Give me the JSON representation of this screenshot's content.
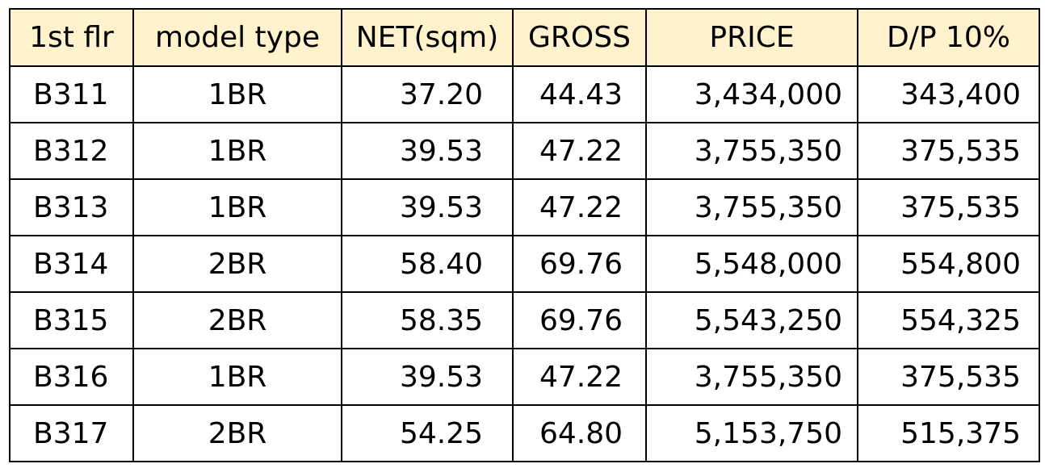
{
  "table": {
    "headers": [
      "1st flr",
      "model type",
      "NET(sqm)",
      "GROSS",
      "PRICE",
      "D/P 10%"
    ],
    "rows": [
      [
        "B311",
        "1BR",
        "37.20",
        "44.43",
        "3,434,000",
        "343,400"
      ],
      [
        "B312",
        "1BR",
        "39.53",
        "47.22",
        "3,755,350",
        "375,535"
      ],
      [
        "B313",
        "1BR",
        "39.53",
        "47.22",
        "3,755,350",
        "375,535"
      ],
      [
        "B314",
        "2BR",
        "58.40",
        "69.76",
        "5,548,000",
        "554,800"
      ],
      [
        "B315",
        "2BR",
        "58.35",
        "69.76",
        "5,543,250",
        "554,325"
      ],
      [
        "B316",
        "1BR",
        "39.53",
        "47.22",
        "3,755,350",
        "375,535"
      ],
      [
        "B317",
        "2BR",
        "54.25",
        "64.80",
        "5,153,750",
        "515,375"
      ]
    ]
  },
  "colors": {
    "header_background": "#fff2cc",
    "border": "#000000",
    "text": "#000000"
  }
}
